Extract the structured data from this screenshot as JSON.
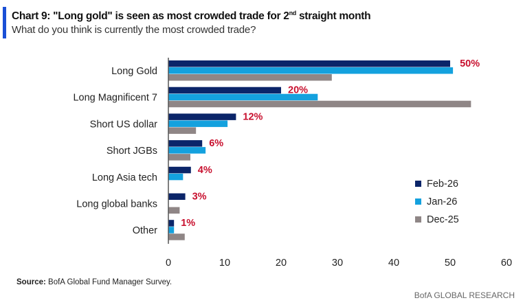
{
  "header": {
    "title_main": "Chart 9: \"Long gold\" is seen as most crowded trade for 2",
    "title_sup": "nd",
    "title_end": " straight month",
    "subtitle": "What do you think is currently the most crowded trade?"
  },
  "footer": {
    "source_label": "Source:",
    "source_text": " BofA Global Fund Manager Survey.",
    "brand": "BofA GLOBAL RESEARCH"
  },
  "chart_data": {
    "type": "bar",
    "orientation": "horizontal",
    "categories": [
      "Long Gold",
      "Long Magnificent 7",
      "Short US dollar",
      "Short JGBs",
      "Long Asia tech",
      "Long global banks",
      "Other"
    ],
    "series": [
      {
        "name": "Feb-26",
        "color": "#0b2569",
        "values": [
          50,
          20,
          12,
          6,
          4,
          3,
          1
        ]
      },
      {
        "name": "Jan-26",
        "color": "#14a1de",
        "values": [
          50.5,
          26.5,
          10.5,
          6.6,
          2.6,
          0,
          1
        ]
      },
      {
        "name": "Dec-25",
        "color": "#8f8686",
        "values": [
          29,
          53.7,
          4.9,
          3.9,
          0,
          2,
          2.9
        ]
      }
    ],
    "data_labels": [
      "50%",
      "20%",
      "12%",
      "6%",
      "4%",
      "3%",
      "1%"
    ],
    "data_label_color": "#c8102e",
    "xlim": [
      0,
      60
    ],
    "xticks": [
      "0",
      "10",
      "20",
      "30",
      "40",
      "50",
      "60"
    ],
    "grid": false,
    "legend": "bottom-right"
  }
}
